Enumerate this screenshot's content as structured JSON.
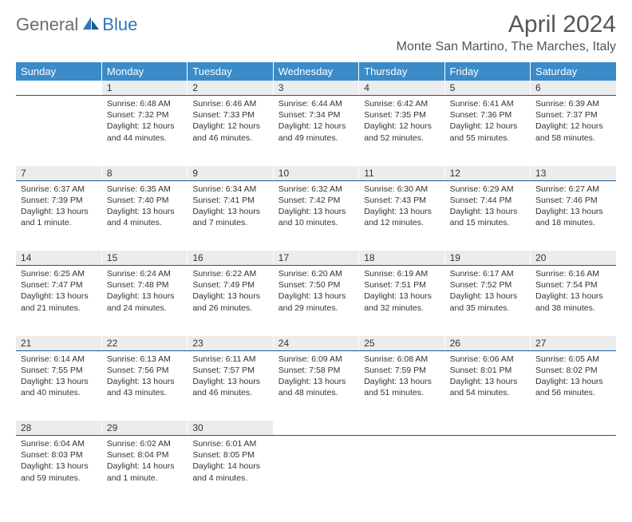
{
  "logo": {
    "text1": "General",
    "text2": "Blue"
  },
  "title": "April 2024",
  "location": "Monte San Martino, The Marches, Italy",
  "colors": {
    "header_bg": "#3b8bc9",
    "header_fg": "#ffffff",
    "daynum_bg": "#ececec",
    "daynum_border": "#1a5a94",
    "logo_gray": "#6b6b6b",
    "logo_blue": "#2f77bb"
  },
  "day_headers": [
    "Sunday",
    "Monday",
    "Tuesday",
    "Wednesday",
    "Thursday",
    "Friday",
    "Saturday"
  ],
  "start_weekday": 1,
  "days_in_month": 30,
  "days": {
    "1": {
      "sunrise": "6:48 AM",
      "sunset": "7:32 PM",
      "daylight": "12 hours and 44 minutes."
    },
    "2": {
      "sunrise": "6:46 AM",
      "sunset": "7:33 PM",
      "daylight": "12 hours and 46 minutes."
    },
    "3": {
      "sunrise": "6:44 AM",
      "sunset": "7:34 PM",
      "daylight": "12 hours and 49 minutes."
    },
    "4": {
      "sunrise": "6:42 AM",
      "sunset": "7:35 PM",
      "daylight": "12 hours and 52 minutes."
    },
    "5": {
      "sunrise": "6:41 AM",
      "sunset": "7:36 PM",
      "daylight": "12 hours and 55 minutes."
    },
    "6": {
      "sunrise": "6:39 AM",
      "sunset": "7:37 PM",
      "daylight": "12 hours and 58 minutes."
    },
    "7": {
      "sunrise": "6:37 AM",
      "sunset": "7:39 PM",
      "daylight": "13 hours and 1 minute."
    },
    "8": {
      "sunrise": "6:35 AM",
      "sunset": "7:40 PM",
      "daylight": "13 hours and 4 minutes."
    },
    "9": {
      "sunrise": "6:34 AM",
      "sunset": "7:41 PM",
      "daylight": "13 hours and 7 minutes."
    },
    "10": {
      "sunrise": "6:32 AM",
      "sunset": "7:42 PM",
      "daylight": "13 hours and 10 minutes."
    },
    "11": {
      "sunrise": "6:30 AM",
      "sunset": "7:43 PM",
      "daylight": "13 hours and 12 minutes."
    },
    "12": {
      "sunrise": "6:29 AM",
      "sunset": "7:44 PM",
      "daylight": "13 hours and 15 minutes."
    },
    "13": {
      "sunrise": "6:27 AM",
      "sunset": "7:46 PM",
      "daylight": "13 hours and 18 minutes."
    },
    "14": {
      "sunrise": "6:25 AM",
      "sunset": "7:47 PM",
      "daylight": "13 hours and 21 minutes."
    },
    "15": {
      "sunrise": "6:24 AM",
      "sunset": "7:48 PM",
      "daylight": "13 hours and 24 minutes."
    },
    "16": {
      "sunrise": "6:22 AM",
      "sunset": "7:49 PM",
      "daylight": "13 hours and 26 minutes."
    },
    "17": {
      "sunrise": "6:20 AM",
      "sunset": "7:50 PM",
      "daylight": "13 hours and 29 minutes."
    },
    "18": {
      "sunrise": "6:19 AM",
      "sunset": "7:51 PM",
      "daylight": "13 hours and 32 minutes."
    },
    "19": {
      "sunrise": "6:17 AM",
      "sunset": "7:52 PM",
      "daylight": "13 hours and 35 minutes."
    },
    "20": {
      "sunrise": "6:16 AM",
      "sunset": "7:54 PM",
      "daylight": "13 hours and 38 minutes."
    },
    "21": {
      "sunrise": "6:14 AM",
      "sunset": "7:55 PM",
      "daylight": "13 hours and 40 minutes."
    },
    "22": {
      "sunrise": "6:13 AM",
      "sunset": "7:56 PM",
      "daylight": "13 hours and 43 minutes."
    },
    "23": {
      "sunrise": "6:11 AM",
      "sunset": "7:57 PM",
      "daylight": "13 hours and 46 minutes."
    },
    "24": {
      "sunrise": "6:09 AM",
      "sunset": "7:58 PM",
      "daylight": "13 hours and 48 minutes."
    },
    "25": {
      "sunrise": "6:08 AM",
      "sunset": "7:59 PM",
      "daylight": "13 hours and 51 minutes."
    },
    "26": {
      "sunrise": "6:06 AM",
      "sunset": "8:01 PM",
      "daylight": "13 hours and 54 minutes."
    },
    "27": {
      "sunrise": "6:05 AM",
      "sunset": "8:02 PM",
      "daylight": "13 hours and 56 minutes."
    },
    "28": {
      "sunrise": "6:04 AM",
      "sunset": "8:03 PM",
      "daylight": "13 hours and 59 minutes."
    },
    "29": {
      "sunrise": "6:02 AM",
      "sunset": "8:04 PM",
      "daylight": "14 hours and 1 minute."
    },
    "30": {
      "sunrise": "6:01 AM",
      "sunset": "8:05 PM",
      "daylight": "14 hours and 4 minutes."
    }
  }
}
